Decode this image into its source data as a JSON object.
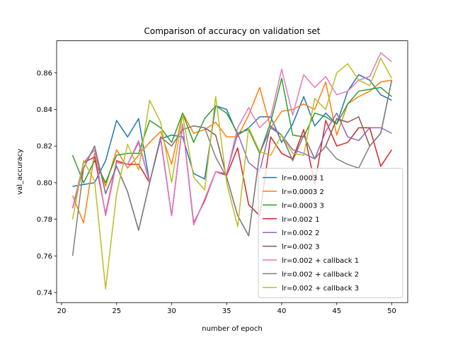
{
  "chart_data": {
    "type": "line",
    "title": "Comparison of accuracy on validation set",
    "xlabel": "number of epoch",
    "ylabel": "val_accuracy",
    "xlim": [
      19.55,
      51.45
    ],
    "ylim": [
      0.7345,
      0.8775
    ],
    "xticks": [
      20,
      25,
      30,
      35,
      40,
      45,
      50
    ],
    "xtick_labels": [
      "20",
      "25",
      "30",
      "35",
      "40",
      "45",
      "50"
    ],
    "yticks": [
      0.74,
      0.76,
      0.78,
      0.8,
      0.82,
      0.84,
      0.86
    ],
    "ytick_labels": [
      "0.74",
      "0.76",
      "0.78",
      "0.80",
      "0.82",
      "0.84",
      "0.86"
    ],
    "grid": false,
    "legend_position": "lower-right",
    "x": [
      21,
      22,
      23,
      24,
      25,
      26,
      27,
      28,
      29,
      30,
      31,
      32,
      33,
      34,
      35,
      36,
      37,
      38,
      39,
      40,
      41,
      42,
      43,
      44,
      45,
      46,
      47,
      48,
      49,
      50
    ],
    "series": [
      {
        "name": "lr=0.0003 1",
        "color": "#1f77b4",
        "values": [
          0.798,
          0.799,
          0.8,
          0.812,
          0.834,
          0.825,
          0.835,
          0.8,
          0.824,
          0.826,
          0.825,
          0.805,
          0.802,
          0.842,
          0.84,
          0.826,
          0.83,
          0.836,
          0.836,
          0.822,
          0.832,
          0.847,
          0.831,
          0.838,
          0.832,
          0.85,
          0.859,
          0.856,
          0.848,
          0.845
        ]
      },
      {
        "name": "lr=0.0003 2",
        "color": "#ff7f0e",
        "values": [
          0.793,
          0.778,
          0.816,
          0.798,
          0.818,
          0.808,
          0.815,
          0.822,
          0.828,
          0.81,
          0.838,
          0.827,
          0.829,
          0.833,
          0.825,
          0.825,
          0.837,
          0.852,
          0.83,
          0.839,
          0.84,
          0.843,
          0.84,
          0.855,
          0.826,
          0.843,
          0.847,
          0.85,
          0.855,
          0.856
        ]
      },
      {
        "name": "lr=0.0003 3",
        "color": "#2ca02c",
        "values": [
          0.815,
          0.8,
          0.812,
          0.8,
          0.815,
          0.816,
          0.816,
          0.834,
          0.83,
          0.822,
          0.838,
          0.822,
          0.835,
          0.842,
          0.838,
          0.827,
          0.829,
          0.816,
          0.833,
          0.857,
          0.826,
          0.825,
          0.838,
          0.836,
          0.832,
          0.843,
          0.85,
          0.851,
          0.852,
          0.847
        ]
      },
      {
        "name": "lr=0.002 1",
        "color": "#d62728",
        "values": [
          0.786,
          0.811,
          0.814,
          0.783,
          0.812,
          0.81,
          0.81,
          0.8,
          0.824,
          0.782,
          0.832,
          0.778,
          0.79,
          0.806,
          0.804,
          0.819,
          0.788,
          0.782,
          0.825,
          0.816,
          0.813,
          0.829,
          0.799,
          0.834,
          0.82,
          0.822,
          0.83,
          0.83,
          0.809,
          0.818
        ]
      },
      {
        "name": "lr=0.002 2",
        "color": "#9467bd",
        "values": [
          0.786,
          0.811,
          0.818,
          0.782,
          0.811,
          0.81,
          0.822,
          0.8,
          0.824,
          0.782,
          0.832,
          0.777,
          0.791,
          0.806,
          0.805,
          0.827,
          0.811,
          0.806,
          0.831,
          0.826,
          0.818,
          0.816,
          0.813,
          0.828,
          0.838,
          0.825,
          0.823,
          0.83,
          0.83,
          0.827
        ]
      },
      {
        "name": "lr=0.002 3",
        "color": "#8c564b",
        "values": [
          0.786,
          0.808,
          0.82,
          0.794,
          0.809,
          0.795,
          0.774,
          0.8,
          0.825,
          0.82,
          0.829,
          0.831,
          0.83,
          0.826,
          0.803,
          0.782,
          0.771,
          0.816,
          0.83,
          0.826,
          0.812,
          0.826,
          0.813,
          0.82,
          0.835,
          0.833,
          0.836,
          0.82,
          0.827,
          0.856
        ]
      },
      {
        "name": "lr=0.002 + callback 1",
        "color": "#e377c2",
        "values": [
          0.786,
          0.811,
          0.818,
          0.782,
          0.811,
          0.81,
          0.823,
          0.8,
          0.825,
          0.782,
          0.832,
          0.777,
          0.791,
          0.806,
          0.805,
          0.83,
          0.841,
          0.83,
          0.836,
          0.862,
          0.837,
          0.859,
          0.852,
          0.858,
          0.848,
          0.85,
          0.856,
          0.858,
          0.871,
          0.866
        ]
      },
      {
        "name": "lr=0.002 + callback 2",
        "color": "#7f7f7f",
        "values": [
          0.76,
          0.808,
          0.82,
          0.794,
          0.809,
          0.795,
          0.774,
          0.8,
          0.825,
          0.82,
          0.829,
          0.831,
          0.83,
          0.814,
          0.803,
          0.782,
          0.771,
          0.816,
          0.83,
          0.826,
          0.812,
          0.826,
          0.813,
          0.82,
          0.813,
          0.81,
          0.808,
          0.82,
          0.827,
          0.856
        ]
      },
      {
        "name": "lr=0.002 + callback 3",
        "color": "#bcbd22",
        "values": [
          0.78,
          0.812,
          0.801,
          0.742,
          0.794,
          0.821,
          0.807,
          0.845,
          0.833,
          0.8,
          0.837,
          0.803,
          0.796,
          0.847,
          0.8,
          0.776,
          0.83,
          0.817,
          0.815,
          0.826,
          0.816,
          0.815,
          0.846,
          0.84,
          0.86,
          0.865,
          0.856,
          0.853,
          0.868,
          0.857
        ]
      }
    ]
  }
}
